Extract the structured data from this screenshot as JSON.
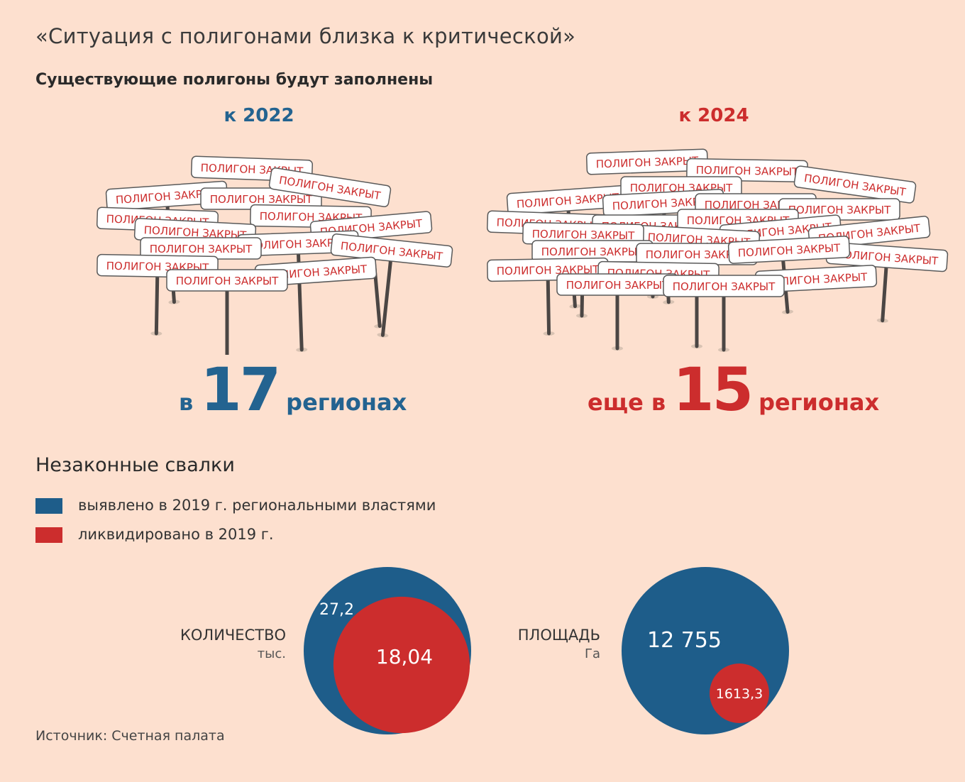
{
  "title": "«Ситуация с полигонами близка к критической»",
  "subtitle": "Существующие полигоны будут заполнены",
  "sign_text": "ПОЛИГОН ЗАКРЫТ",
  "colors": {
    "blue": "#1e5d8a",
    "red": "#cc2d2d",
    "background": "#fde0cf"
  },
  "forecast": [
    {
      "year_label": "к 2022",
      "prefix": "в",
      "number": "17",
      "suffix": "регионах",
      "color": "#236390"
    },
    {
      "year_label": "к 2024",
      "prefix": "еще в",
      "number": "15",
      "suffix": "регионах",
      "color": "#cc2d2d"
    }
  ],
  "section2": "Незаконные свалки",
  "legend": [
    {
      "label": "выявлено в 2019 г. региональными властями",
      "color": "#1e5d8a"
    },
    {
      "label": "ликвидировано в 2019 г.",
      "color": "#cc2d2d"
    }
  ],
  "chart_data": [
    {
      "type": "bubble",
      "label": "КОЛИЧЕСТВО",
      "unit": "тыс.",
      "series": [
        {
          "name": "выявлено в 2019 г. региональными властями",
          "value": 27.2,
          "display": "27,2"
        },
        {
          "name": "ликвидировано в 2019 г.",
          "value": 18.04,
          "display": "18,04"
        }
      ]
    },
    {
      "type": "bubble",
      "label": "ПЛОЩАДЬ",
      "unit": "Га",
      "series": [
        {
          "name": "выявлено в 2019 г. региональными властями",
          "value": 12755,
          "display": "12 755"
        },
        {
          "name": "ликвидировано в 2019 г.",
          "value": 1613.3,
          "display": "1613,3"
        }
      ]
    }
  ],
  "source": "Источник: Счетная палата"
}
